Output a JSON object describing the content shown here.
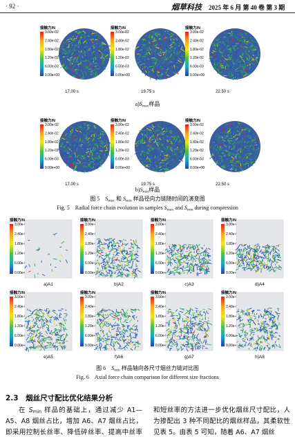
{
  "header": {
    "page": "· 92 ·",
    "journal": "烟草科技",
    "issue": "2025 年 6 月 第 40 卷 第 3 期"
  },
  "colorbar": {
    "title": "接触力/N",
    "labels": [
      "3.00e-02",
      "2.40e-02",
      "1.80e-02",
      "1.20e-02",
      "6.00e-03",
      "0.00e+00"
    ]
  },
  "figure5": {
    "times": [
      "17.00 s",
      "19.75 s",
      "22.50 s"
    ],
    "rows": [
      {
        "caption": [
          {
            "text": "a)"
          },
          {
            "text": "S"
          },
          {
            "text": "max",
            "sub": true
          },
          {
            "text": "样品"
          }
        ]
      },
      {
        "caption": [
          {
            "text": "b)"
          },
          {
            "text": "S"
          },
          {
            "text": "min",
            "sub": true
          },
          {
            "text": "样品"
          }
        ]
      }
    ],
    "caption_cn": [
      {
        "text": "图 5　"
      },
      {
        "text": "S"
      },
      {
        "text": "max",
        "sub": true
      },
      {
        "text": " 和 "
      },
      {
        "text": "S"
      },
      {
        "text": "min",
        "sub": true
      },
      {
        "text": " 样品径向力链随时间的演变图"
      }
    ],
    "caption_en": [
      {
        "text": "Fig. 5　Radial force chain evolution in samples "
      },
      {
        "text": "S"
      },
      {
        "text": "max",
        "sub": true
      },
      {
        "text": " and "
      },
      {
        "text": "S"
      },
      {
        "text": "min",
        "sub": true
      },
      {
        "text": " during compression"
      }
    ]
  },
  "figure6": {
    "panels": [
      "a)A1",
      "b)A2",
      "c)A3",
      "d)A4",
      "e)A5",
      "f)A6",
      "g)A7",
      "h)A8"
    ],
    "caption_cn": [
      {
        "text": "图 6　"
      },
      {
        "text": "S"
      },
      {
        "text": "min",
        "sub": true
      },
      {
        "text": " 样品轴向各尺寸烟丝力链对比图"
      }
    ],
    "caption_en": [
      {
        "text": "Fig. 6　Axial force chain comparison for different size fractions"
      }
    ]
  },
  "section": {
    "heading": "2.3　烟丝尺寸配比优化结果分析",
    "paragraph": [
      {
        "text": "在 "
      },
      {
        "text": "S"
      },
      {
        "text": "min",
        "sub": true
      },
      {
        "text": " 样品的基础上，通过减少 A1—A5、A8 烟丝占比，增加 A6、A7 烟丝占比，即采用控制长丝率、降低碎丝率、提高中丝率和短丝率的方法进一步优化烟丝尺寸配比，人为掺配出 3 种不同配比的烟丝样品，其柔软性见表 5。由表 5 可知，随着 A6、A7 烟丝"
      }
    ]
  }
}
